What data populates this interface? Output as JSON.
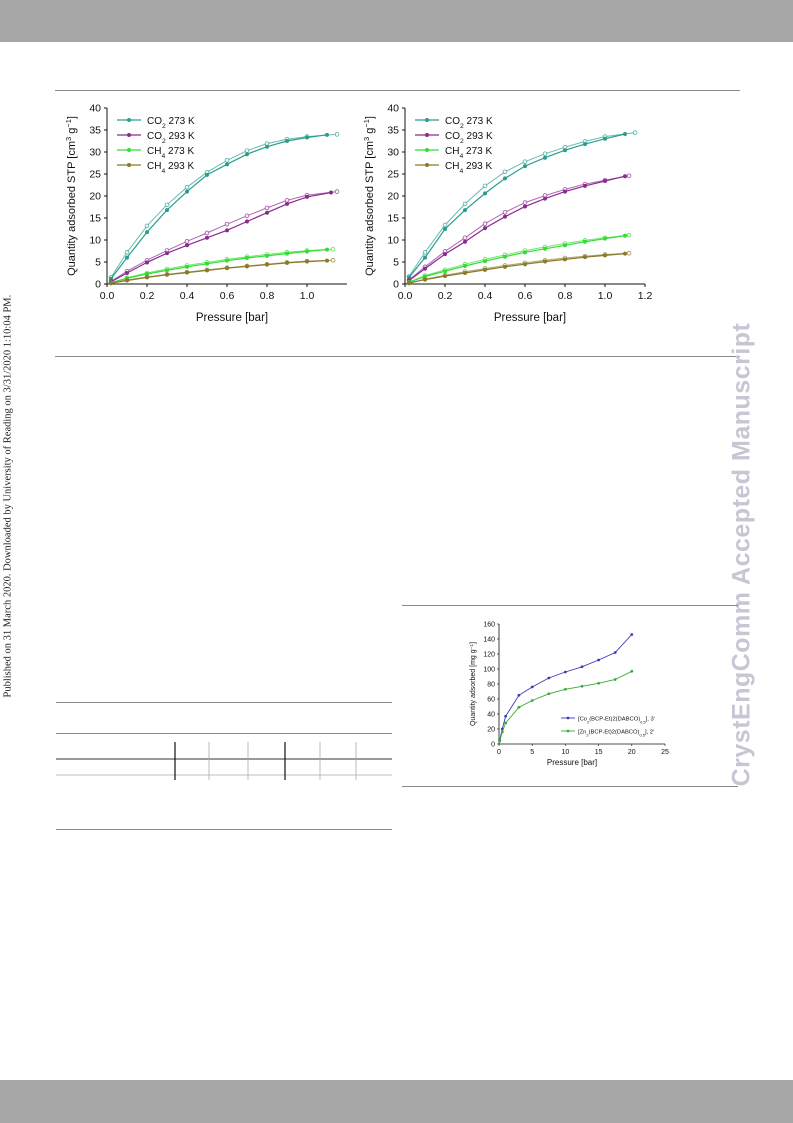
{
  "sidebar_note": "Published on 31 March 2020. Downloaded by University of Reading on 3/31/2020 1:10:04 PM.",
  "watermark": "CrystEngComm Accepted Manuscript",
  "colors": {
    "co2_273": "#2a9d8f",
    "co2_293": "#8b2a8f",
    "ch4_273": "#33dd33",
    "ch4_293": "#8a7a2a",
    "co_complex": "#3b3bb5",
    "zn_complex": "#3aa83a",
    "header_bar": "#a6a6a6",
    "watermark": "#c6c6d4"
  },
  "chart_data": [
    {
      "type": "line",
      "xlabel": "Pressure [bar]",
      "ylabel": "Quantity adsorbed STP [cm3 g-1]",
      "xlim": [
        0,
        1.2
      ],
      "ylim": [
        0,
        40
      ],
      "xticks": [
        "0.0",
        "0.2",
        "0.4",
        "0.6",
        "0.8",
        "1.0"
      ],
      "yticks": [
        "0",
        "5",
        "10",
        "15",
        "20",
        "25",
        "30",
        "35",
        "40"
      ],
      "legend_position": "top-left",
      "series": [
        {
          "name": "CO2 273 K",
          "key": "co2_273",
          "ads": [
            [
              0.02,
              1.2
            ],
            [
              0.1,
              6
            ],
            [
              0.2,
              11.8
            ],
            [
              0.3,
              16.8
            ],
            [
              0.4,
              21
            ],
            [
              0.5,
              24.8
            ],
            [
              0.6,
              27.2
            ],
            [
              0.7,
              29.5
            ],
            [
              0.8,
              31.2
            ],
            [
              0.9,
              32.5
            ],
            [
              1.0,
              33.3
            ],
            [
              1.1,
              33.9
            ]
          ],
          "des": [
            [
              1.15,
              34
            ],
            [
              1.0,
              33.5
            ],
            [
              0.9,
              32.9
            ],
            [
              0.8,
              31.9
            ],
            [
              0.7,
              30.3
            ],
            [
              0.6,
              28.1
            ],
            [
              0.5,
              25.4
            ],
            [
              0.4,
              22
            ],
            [
              0.3,
              18
            ],
            [
              0.2,
              13.2
            ],
            [
              0.1,
              7.2
            ],
            [
              0.02,
              1.5
            ]
          ]
        },
        {
          "name": "CO2 293 K",
          "key": "co2_293",
          "ads": [
            [
              0.02,
              0.5
            ],
            [
              0.1,
              2.5
            ],
            [
              0.2,
              4.9
            ],
            [
              0.3,
              7
            ],
            [
              0.4,
              8.8
            ],
            [
              0.5,
              10.5
            ],
            [
              0.6,
              12.2
            ],
            [
              0.7,
              14.2
            ],
            [
              0.8,
              16.2
            ],
            [
              0.9,
              18.2
            ],
            [
              1.0,
              19.8
            ],
            [
              1.12,
              20.8
            ]
          ],
          "des": [
            [
              1.15,
              21
            ],
            [
              1.0,
              20.2
            ],
            [
              0.9,
              19
            ],
            [
              0.8,
              17.3
            ],
            [
              0.7,
              15.5
            ],
            [
              0.6,
              13.6
            ],
            [
              0.5,
              11.6
            ],
            [
              0.4,
              9.7
            ],
            [
              0.3,
              7.6
            ],
            [
              0.2,
              5.4
            ],
            [
              0.1,
              2.9
            ],
            [
              0.02,
              0.6
            ]
          ]
        },
        {
          "name": "CH4 273 K",
          "key": "ch4_273",
          "ads": [
            [
              0.02,
              0.3
            ],
            [
              0.1,
              1.3
            ],
            [
              0.2,
              2.3
            ],
            [
              0.3,
              3.1
            ],
            [
              0.4,
              3.9
            ],
            [
              0.5,
              4.6
            ],
            [
              0.6,
              5.3
            ],
            [
              0.7,
              5.9
            ],
            [
              0.8,
              6.4
            ],
            [
              0.9,
              6.9
            ],
            [
              1.0,
              7.4
            ],
            [
              1.1,
              7.8
            ]
          ],
          "des": [
            [
              1.13,
              7.9
            ],
            [
              1.0,
              7.6
            ],
            [
              0.9,
              7.2
            ],
            [
              0.8,
              6.7
            ],
            [
              0.7,
              6.2
            ],
            [
              0.6,
              5.6
            ],
            [
              0.5,
              4.9
            ],
            [
              0.4,
              4.2
            ],
            [
              0.3,
              3.4
            ],
            [
              0.2,
              2.5
            ],
            [
              0.1,
              1.4
            ],
            [
              0.02,
              0.3
            ]
          ]
        },
        {
          "name": "CH4 293 K",
          "key": "ch4_293",
          "ads": [
            [
              0.02,
              0.2
            ],
            [
              0.1,
              0.8
            ],
            [
              0.2,
              1.5
            ],
            [
              0.3,
              2.1
            ],
            [
              0.4,
              2.6
            ],
            [
              0.5,
              3.1
            ],
            [
              0.6,
              3.6
            ],
            [
              0.7,
              4.0
            ],
            [
              0.8,
              4.4
            ],
            [
              0.9,
              4.8
            ],
            [
              1.0,
              5.1
            ],
            [
              1.1,
              5.3
            ]
          ],
          "des": [
            [
              1.13,
              5.4
            ],
            [
              1.0,
              5.2
            ],
            [
              0.9,
              4.9
            ],
            [
              0.8,
              4.5
            ],
            [
              0.7,
              4.1
            ],
            [
              0.6,
              3.7
            ],
            [
              0.5,
              3.2
            ],
            [
              0.4,
              2.7
            ],
            [
              0.3,
              2.2
            ],
            [
              0.2,
              1.6
            ],
            [
              0.1,
              0.9
            ],
            [
              0.02,
              0.2
            ]
          ]
        }
      ]
    },
    {
      "type": "line",
      "xlabel": "Pressure [bar]",
      "ylabel": "Quantity adsorbed STP [cm3 g-1]",
      "xlim": [
        0,
        1.2
      ],
      "ylim": [
        0,
        40
      ],
      "xticks": [
        "0.0",
        "0.2",
        "0.4",
        "0.6",
        "0.8",
        "1.0",
        "1.2"
      ],
      "yticks": [
        "0",
        "5",
        "10",
        "15",
        "20",
        "25",
        "30",
        "35",
        "40"
      ],
      "legend_position": "top-left",
      "series": [
        {
          "name": "CO2 273 K",
          "key": "co2_273",
          "ads": [
            [
              0.02,
              1.5
            ],
            [
              0.1,
              6
            ],
            [
              0.2,
              12.5
            ],
            [
              0.3,
              16.8
            ],
            [
              0.4,
              20.6
            ],
            [
              0.5,
              24
            ],
            [
              0.6,
              26.8
            ],
            [
              0.7,
              28.7
            ],
            [
              0.8,
              30.4
            ],
            [
              0.9,
              31.8
            ],
            [
              1.0,
              33
            ],
            [
              1.1,
              34.1
            ]
          ],
          "des": [
            [
              1.15,
              34.4
            ],
            [
              1.0,
              33.5
            ],
            [
              0.9,
              32.4
            ],
            [
              0.8,
              31.1
            ],
            [
              0.7,
              29.6
            ],
            [
              0.6,
              27.8
            ],
            [
              0.5,
              25.5
            ],
            [
              0.4,
              22.3
            ],
            [
              0.3,
              18.2
            ],
            [
              0.2,
              13.4
            ],
            [
              0.1,
              7.2
            ],
            [
              0.02,
              1.7
            ]
          ]
        },
        {
          "name": "CO2 293 K",
          "key": "co2_293",
          "ads": [
            [
              0.02,
              0.8
            ],
            [
              0.1,
              3.5
            ],
            [
              0.2,
              6.8
            ],
            [
              0.3,
              9.6
            ],
            [
              0.4,
              12.7
            ],
            [
              0.5,
              15.3
            ],
            [
              0.6,
              17.6
            ],
            [
              0.7,
              19.4
            ],
            [
              0.8,
              21
            ],
            [
              0.9,
              22.3
            ],
            [
              1.0,
              23.4
            ],
            [
              1.1,
              24.5
            ]
          ],
          "des": [
            [
              1.12,
              24.6
            ],
            [
              1.0,
              23.6
            ],
            [
              0.9,
              22.7
            ],
            [
              0.8,
              21.5
            ],
            [
              0.7,
              20.1
            ],
            [
              0.6,
              18.5
            ],
            [
              0.5,
              16.3
            ],
            [
              0.4,
              13.7
            ],
            [
              0.3,
              10.5
            ],
            [
              0.2,
              7.4
            ],
            [
              0.1,
              3.9
            ],
            [
              0.02,
              0.9
            ]
          ]
        },
        {
          "name": "CH4 273 K",
          "key": "ch4_273",
          "ads": [
            [
              0.02,
              0.4
            ],
            [
              0.1,
              1.7
            ],
            [
              0.2,
              2.9
            ],
            [
              0.3,
              4.1
            ],
            [
              0.4,
              5.2
            ],
            [
              0.5,
              6.2
            ],
            [
              0.6,
              7.2
            ],
            [
              0.7,
              8.0
            ],
            [
              0.8,
              8.8
            ],
            [
              0.9,
              9.6
            ],
            [
              1.0,
              10.3
            ],
            [
              1.1,
              11
            ]
          ],
          "des": [
            [
              1.12,
              11.1
            ],
            [
              1.0,
              10.5
            ],
            [
              0.9,
              9.9
            ],
            [
              0.8,
              9.2
            ],
            [
              0.7,
              8.4
            ],
            [
              0.6,
              7.6
            ],
            [
              0.5,
              6.6
            ],
            [
              0.4,
              5.6
            ],
            [
              0.3,
              4.5
            ],
            [
              0.2,
              3.2
            ],
            [
              0.1,
              1.9
            ],
            [
              0.02,
              0.4
            ]
          ]
        },
        {
          "name": "CH4 293 K",
          "key": "ch4_293",
          "ads": [
            [
              0.02,
              0.2
            ],
            [
              0.1,
              1.0
            ],
            [
              0.2,
              1.8
            ],
            [
              0.3,
              2.5
            ],
            [
              0.4,
              3.2
            ],
            [
              0.5,
              3.9
            ],
            [
              0.6,
              4.5
            ],
            [
              0.7,
              5.1
            ],
            [
              0.8,
              5.6
            ],
            [
              0.9,
              6.1
            ],
            [
              1.0,
              6.5
            ],
            [
              1.1,
              6.9
            ]
          ],
          "des": [
            [
              1.12,
              7.0
            ],
            [
              1.0,
              6.7
            ],
            [
              0.9,
              6.3
            ],
            [
              0.8,
              5.9
            ],
            [
              0.7,
              5.4
            ],
            [
              0.6,
              4.8
            ],
            [
              0.5,
              4.2
            ],
            [
              0.4,
              3.5
            ],
            [
              0.3,
              2.8
            ],
            [
              0.2,
              2.0
            ],
            [
              0.1,
              1.1
            ],
            [
              0.02,
              0.2
            ]
          ]
        }
      ]
    },
    {
      "type": "line",
      "xlabel": "Pressure [bar]",
      "ylabel": "Quantity adsorbed [mg g-1]",
      "xlim": [
        0,
        25
      ],
      "ylim": [
        0,
        160
      ],
      "xticks": [
        "0",
        "5",
        "10",
        "15",
        "20",
        "25"
      ],
      "yticks": [
        "0",
        "20",
        "40",
        "60",
        "80",
        "100",
        "120",
        "140",
        "160"
      ],
      "legend_position": "bottom-right",
      "series": [
        {
          "name": "[Co2(BCP-Et)2(DABCO)0.5], 3'",
          "key": "co_complex",
          "values": [
            [
              0.1,
              5
            ],
            [
              0.5,
              20
            ],
            [
              1,
              37
            ],
            [
              3,
              65
            ],
            [
              5,
              76
            ],
            [
              7.5,
              88
            ],
            [
              10,
              96
            ],
            [
              12.5,
              103
            ],
            [
              15,
              112
            ],
            [
              17.5,
              122
            ],
            [
              20,
              146
            ]
          ]
        },
        {
          "name": "[Zn2(BCP-Et)2(DABCO)0.5], 2'",
          "key": "zn_complex",
          "values": [
            [
              0.1,
              4
            ],
            [
              0.5,
              16
            ],
            [
              1,
              28
            ],
            [
              3,
              49
            ],
            [
              5,
              58
            ],
            [
              7.5,
              67
            ],
            [
              10,
              73
            ],
            [
              12.5,
              77
            ],
            [
              15,
              81
            ],
            [
              17.5,
              86
            ],
            [
              20,
              97
            ]
          ]
        }
      ]
    }
  ]
}
